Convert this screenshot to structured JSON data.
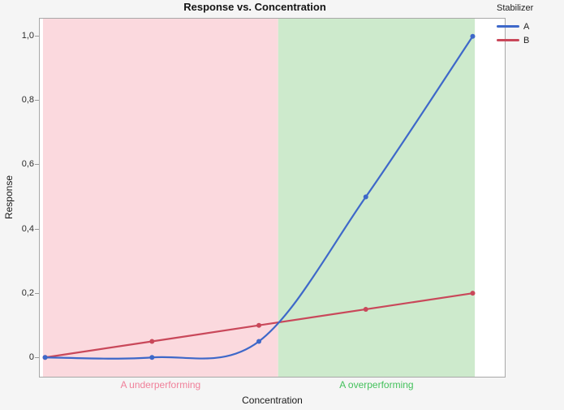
{
  "chart_data": {
    "type": "line",
    "title": "Response vs. Concentration",
    "xlabel": "Concentration",
    "ylabel": "Response",
    "legend_title": "Stabilizer",
    "legend_position": "right",
    "grid": false,
    "x": [
      1,
      2,
      3,
      4,
      5
    ],
    "x_tick_labels_shown": false,
    "series": [
      {
        "name": "A",
        "color": "#3e68c9",
        "smooth": true,
        "markers": true,
        "values": [
          0,
          0,
          0.05,
          0.5,
          1.0
        ]
      },
      {
        "name": "B",
        "color": "#c9485a",
        "smooth": false,
        "markers": true,
        "values": [
          0,
          0.05,
          0.1,
          0.15,
          0.2
        ]
      }
    ],
    "y_ticks": [
      {
        "v": 0,
        "label": "0"
      },
      {
        "v": 0.2,
        "label": "0,2"
      },
      {
        "v": 0.4,
        "label": "0,4"
      },
      {
        "v": 0.6,
        "label": "0,6"
      },
      {
        "v": 0.8,
        "label": "0,8"
      },
      {
        "v": 1.0,
        "label": "1,0"
      }
    ],
    "xlim": [
      0.95,
      5.3
    ],
    "ylim": [
      -0.06,
      1.055
    ],
    "regions": [
      {
        "label": "A underperforming",
        "from": 0.98,
        "to": 3.18,
        "fill": "#fbd9de",
        "label_color": "#f0809a"
      },
      {
        "label": "A overperforming",
        "from": 3.18,
        "to": 5.02,
        "fill": "#cdeacc",
        "label_color": "#44c15c"
      }
    ],
    "frame": {
      "background": "#ffffff",
      "border_color": "#a8a8a8"
    }
  }
}
